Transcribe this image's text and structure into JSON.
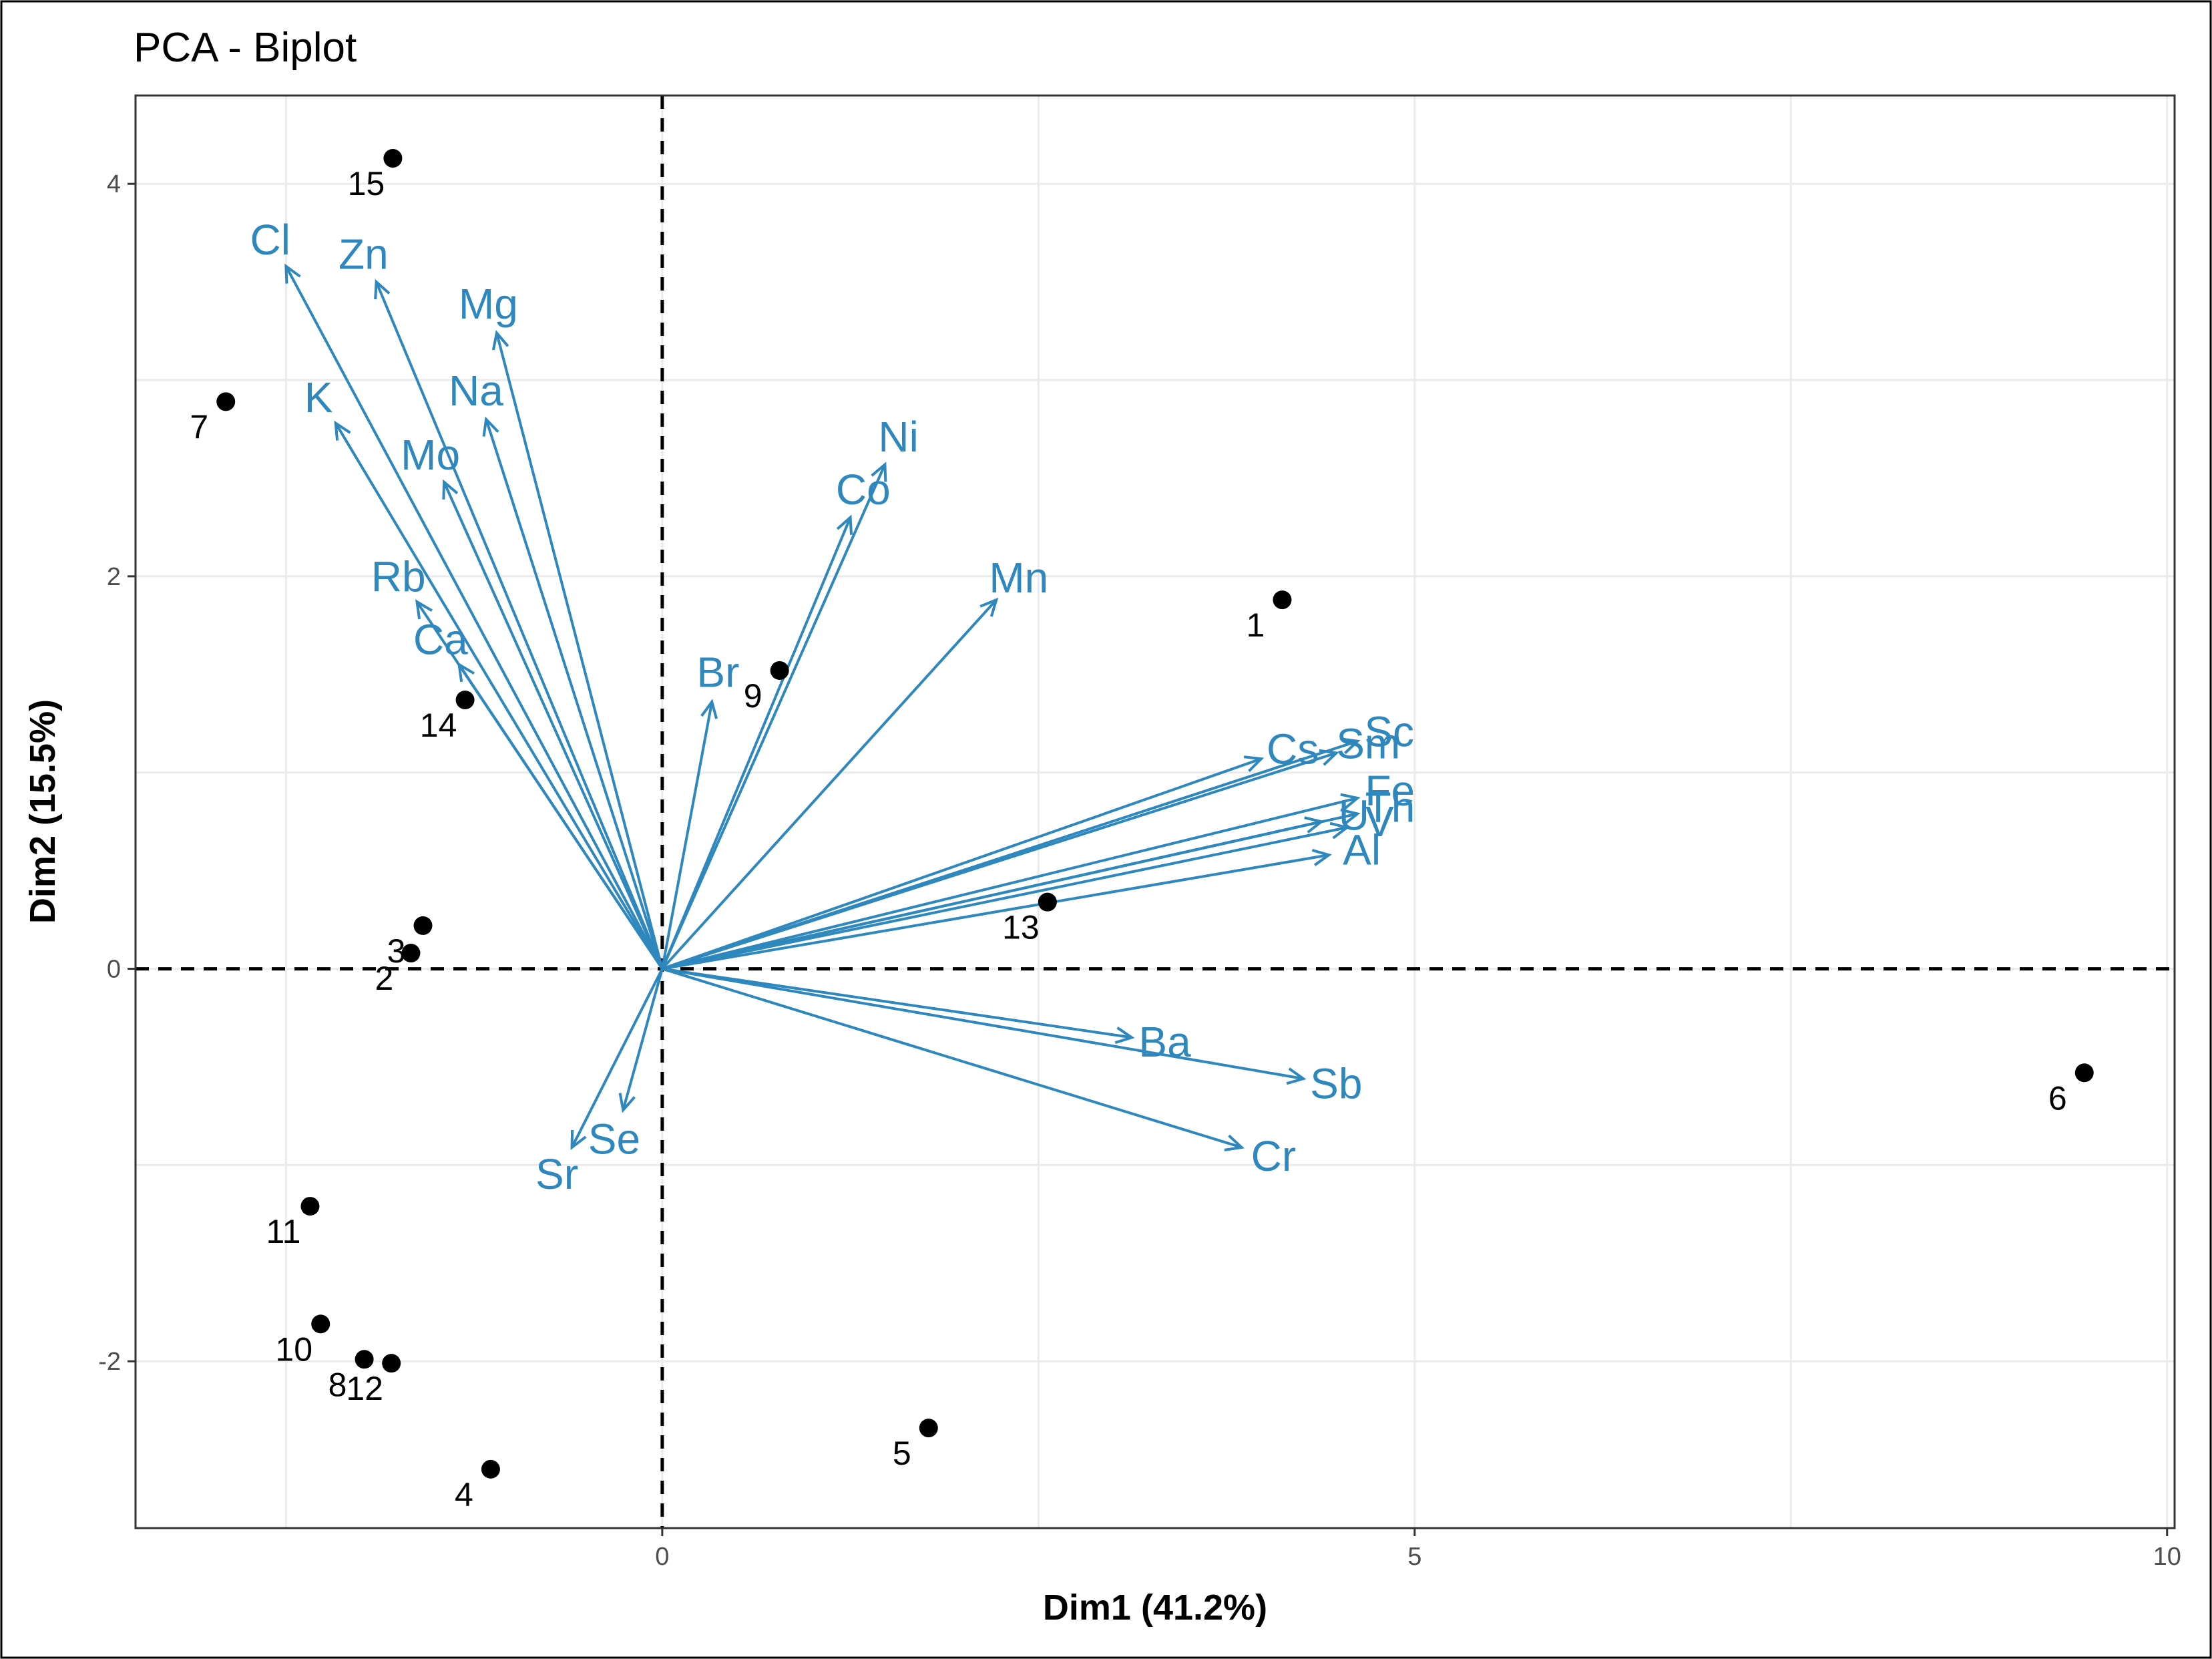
{
  "chart_data": {
    "type": "scatter",
    "title": "PCA - Biplot",
    "xlabel": "Dim1 (41.2%)",
    "ylabel": "Dim2 (15.5%)",
    "xlim": [
      -3.5,
      10.05
    ],
    "ylim": [
      -2.85,
      4.45
    ],
    "xticks": [
      0,
      5,
      10
    ],
    "xtick_labels": [
      "0",
      "5",
      "10"
    ],
    "xgrid": [
      -2.5,
      0,
      2.5,
      5,
      7.5,
      10
    ],
    "yticks": [
      -2,
      0,
      2,
      4
    ],
    "ytick_labels": [
      "-2",
      "0",
      "2",
      "4"
    ],
    "ygrid": [
      -2,
      -1,
      0,
      1,
      2,
      3,
      4
    ],
    "grid": true,
    "colors": {
      "arrow": "#2E87BD",
      "point": "#000000",
      "grid": "#EBEBEB",
      "axis_line": "#000000"
    },
    "individuals": [
      {
        "label": "1",
        "x": 4.12,
        "y": 1.88
      },
      {
        "label": "2",
        "x": -1.67,
        "y": 0.08
      },
      {
        "label": "3",
        "x": -1.59,
        "y": 0.22
      },
      {
        "label": "4",
        "x": -1.14,
        "y": -2.55
      },
      {
        "label": "5",
        "x": 1.77,
        "y": -2.34
      },
      {
        "label": "6",
        "x": 9.45,
        "y": -0.53
      },
      {
        "label": "7",
        "x": -2.9,
        "y": 2.89
      },
      {
        "label": "8",
        "x": -1.98,
        "y": -1.99
      },
      {
        "label": "9",
        "x": 0.78,
        "y": 1.52
      },
      {
        "label": "10",
        "x": -2.27,
        "y": -1.81
      },
      {
        "label": "11",
        "x": -2.34,
        "y": -1.21
      },
      {
        "label": "12",
        "x": -1.8,
        "y": -2.01
      },
      {
        "label": "13",
        "x": 2.56,
        "y": 0.34
      },
      {
        "label": "14",
        "x": -1.31,
        "y": 1.37
      },
      {
        "label": "15",
        "x": -1.79,
        "y": 4.13
      }
    ],
    "variables": [
      {
        "name": "Cl",
        "x": -2.5,
        "y": 3.58
      },
      {
        "name": "Zn",
        "x": -1.9,
        "y": 3.5
      },
      {
        "name": "Mg",
        "x": -1.1,
        "y": 3.24
      },
      {
        "name": "Na",
        "x": -1.17,
        "y": 2.8
      },
      {
        "name": "K",
        "x": -2.17,
        "y": 2.78
      },
      {
        "name": "Mo",
        "x": -1.45,
        "y": 2.48
      },
      {
        "name": "Rb",
        "x": -1.63,
        "y": 1.87
      },
      {
        "name": "Ca",
        "x": -1.35,
        "y": 1.55
      },
      {
        "name": "Ni",
        "x": 1.48,
        "y": 2.57
      },
      {
        "name": "Co",
        "x": 1.25,
        "y": 2.3
      },
      {
        "name": "Br",
        "x": 0.33,
        "y": 1.36
      },
      {
        "name": "Mn",
        "x": 2.22,
        "y": 1.88
      },
      {
        "name": "Cs",
        "x": 3.98,
        "y": 1.07
      },
      {
        "name": "Sc",
        "x": 4.62,
        "y": 1.16
      },
      {
        "name": "Sm",
        "x": 4.48,
        "y": 1.1
      },
      {
        "name": "Fe",
        "x": 4.62,
        "y": 0.87
      },
      {
        "name": "Th",
        "x": 4.62,
        "y": 0.79
      },
      {
        "name": "U",
        "x": 4.38,
        "y": 0.75
      },
      {
        "name": "V",
        "x": 4.55,
        "y": 0.72
      },
      {
        "name": "Al",
        "x": 4.43,
        "y": 0.58
      },
      {
        "name": "Ba",
        "x": 3.12,
        "y": -0.35
      },
      {
        "name": "Sb",
        "x": 4.26,
        "y": -0.56
      },
      {
        "name": "Cr",
        "x": 3.85,
        "y": -0.91
      },
      {
        "name": "Se",
        "x": -0.26,
        "y": -0.72
      },
      {
        "name": "Sr",
        "x": -0.6,
        "y": -0.91
      }
    ]
  }
}
